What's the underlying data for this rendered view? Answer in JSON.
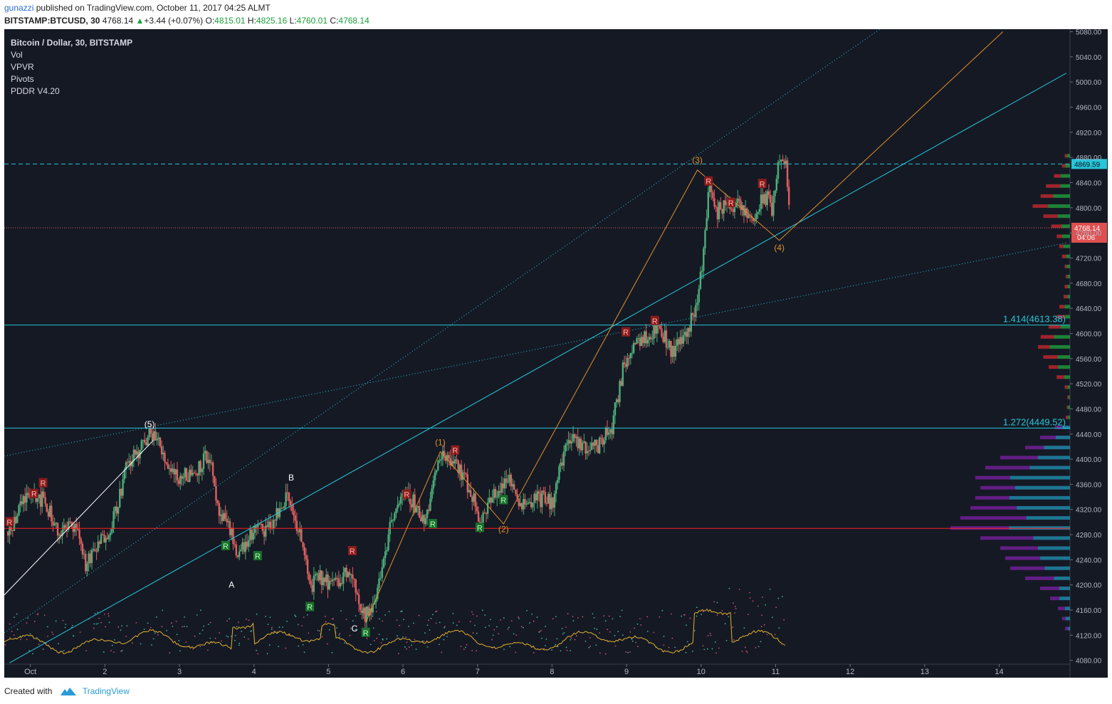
{
  "header": {
    "user": "gunazzi",
    "published": "published on TradingView.com, October 11, 2017 04:25 ALMT",
    "symbol": "BITSTAMP:BTCUSD, 30",
    "last": "4768.14",
    "change_arrow": "▲",
    "change": "+3.44 (+0.07%)",
    "o_label": "O:",
    "o_val": "4815.01",
    "h_label": "H:",
    "h_val": "4825.16",
    "l_label": "L:",
    "l_val": "4760.01",
    "c_label": "C:",
    "c_val": "4768.14"
  },
  "legend": [
    "Bitcoin / Dollar, 30, BITSTAMP",
    "Vol",
    "VPVR",
    "Pivots",
    "PDDR V4.20"
  ],
  "footer": {
    "created": "Created with",
    "brand": "TradingView"
  },
  "chart_data": {
    "type": "candlestick",
    "background": "#151924",
    "colors": {
      "up": "#4caf7a",
      "down": "#e06060",
      "trendline": "#26c6da",
      "wave": "#e0902a",
      "volume_profile_up": "#1f8f3a",
      "volume_profile_down": "#b0262e",
      "volume_profile_va_up": "#1f7fa0",
      "volume_profile_va_down": "#6a1f8f",
      "oscillator": "#e0b030",
      "poc_line": "#ff2020"
    },
    "y_ticks": [
      4080,
      4120,
      4160,
      4200,
      4240,
      4280,
      4320,
      4360,
      4400,
      4440,
      4480,
      4520,
      4560,
      4600,
      4640,
      4680,
      4720,
      4760,
      4800,
      4840,
      4880,
      4920,
      4960,
      5000,
      5040,
      5080
    ],
    "ylim": [
      4074,
      5084
    ],
    "x_ticks": [
      "Oct",
      "2",
      "3",
      "4",
      "5",
      "6",
      "7",
      "8",
      "9",
      "10",
      "11",
      "12",
      "13",
      "14"
    ],
    "x_range_days": [
      0.65,
      14.95
    ],
    "price_path": [
      [
        0.7,
        4285
      ],
      [
        0.9,
        4330
      ],
      [
        1.0,
        4355
      ],
      [
        1.2,
        4330
      ],
      [
        1.4,
        4280
      ],
      [
        1.6,
        4300
      ],
      [
        1.75,
        4230
      ],
      [
        1.9,
        4260
      ],
      [
        2.1,
        4300
      ],
      [
        2.3,
        4390
      ],
      [
        2.5,
        4420
      ],
      [
        2.65,
        4445
      ],
      [
        2.8,
        4400
      ],
      [
        3.0,
        4370
      ],
      [
        3.2,
        4380
      ],
      [
        3.4,
        4410
      ],
      [
        3.5,
        4320
      ],
      [
        3.65,
        4290
      ],
      [
        3.8,
        4250
      ],
      [
        4.0,
        4285
      ],
      [
        4.2,
        4290
      ],
      [
        4.45,
        4340
      ],
      [
        4.6,
        4290
      ],
      [
        4.75,
        4200
      ],
      [
        4.9,
        4210
      ],
      [
        5.1,
        4200
      ],
      [
        5.3,
        4230
      ],
      [
        5.45,
        4150
      ],
      [
        5.6,
        4160
      ],
      [
        5.75,
        4250
      ],
      [
        5.9,
        4330
      ],
      [
        6.1,
        4340
      ],
      [
        6.3,
        4300
      ],
      [
        6.5,
        4410
      ],
      [
        6.7,
        4400
      ],
      [
        6.9,
        4350
      ],
      [
        7.05,
        4300
      ],
      [
        7.2,
        4340
      ],
      [
        7.4,
        4370
      ],
      [
        7.6,
        4330
      ],
      [
        7.8,
        4340
      ],
      [
        8.0,
        4330
      ],
      [
        8.2,
        4430
      ],
      [
        8.4,
        4420
      ],
      [
        8.6,
        4420
      ],
      [
        8.8,
        4450
      ],
      [
        8.95,
        4540
      ],
      [
        9.1,
        4590
      ],
      [
        9.3,
        4600
      ],
      [
        9.45,
        4610
      ],
      [
        9.6,
        4570
      ],
      [
        9.8,
        4600
      ],
      [
        9.95,
        4650
      ],
      [
        10.05,
        4750
      ],
      [
        10.1,
        4840
      ],
      [
        10.2,
        4790
      ],
      [
        10.35,
        4810
      ],
      [
        10.5,
        4800
      ],
      [
        10.7,
        4780
      ],
      [
        10.85,
        4820
      ],
      [
        10.95,
        4800
      ],
      [
        11.05,
        4880
      ],
      [
        11.15,
        4860
      ],
      [
        11.2,
        4768
      ]
    ],
    "vol_profile": [
      [
        4882,
        0.1
      ],
      [
        4866,
        0.15
      ],
      [
        4850,
        0.3
      ],
      [
        4834,
        0.45
      ],
      [
        4818,
        0.55
      ],
      [
        4802,
        0.7
      ],
      [
        4786,
        0.5
      ],
      [
        4770,
        0.35
      ],
      [
        4754,
        0.25
      ],
      [
        4738,
        0.2
      ],
      [
        4722,
        0.15
      ],
      [
        4706,
        0.1
      ],
      [
        4690,
        0.08
      ],
      [
        4674,
        0.1
      ],
      [
        4658,
        0.12
      ],
      [
        4642,
        0.2
      ],
      [
        4626,
        0.25
      ],
      [
        4610,
        0.4
      ],
      [
        4594,
        0.55
      ],
      [
        4578,
        0.6
      ],
      [
        4562,
        0.5
      ],
      [
        4546,
        0.4
      ],
      [
        4530,
        0.25
      ],
      [
        4514,
        0.1
      ],
      [
        4498,
        0.05
      ],
      [
        4482,
        0.06
      ],
      [
        4466,
        0.08
      ],
      [
        4450,
        0.15
      ],
      [
        4434,
        0.3
      ],
      [
        4418,
        0.45
      ],
      [
        4402,
        0.7
      ],
      [
        4386,
        0.85
      ],
      [
        4370,
        0.95
      ],
      [
        4354,
        0.9
      ],
      [
        4338,
        0.95
      ],
      [
        4322,
        1.0
      ],
      [
        4306,
        1.1
      ],
      [
        4290,
        1.2
      ],
      [
        4274,
        0.9
      ],
      [
        4258,
        0.7
      ],
      [
        4242,
        0.65
      ],
      [
        4226,
        0.6
      ],
      [
        4210,
        0.45
      ],
      [
        4194,
        0.3
      ],
      [
        4178,
        0.2
      ],
      [
        4162,
        0.12
      ],
      [
        4146,
        0.08
      ],
      [
        4130,
        0.05
      ]
    ],
    "horizontal_levels": [
      {
        "price": 4869.59,
        "style": "dashed",
        "label": "4869.59"
      },
      {
        "price": 4613.38,
        "label": "1.414(4613.38)"
      },
      {
        "price": 4449.52,
        "label": "1.272(4449.52)"
      },
      {
        "price": 4290,
        "poc": true
      }
    ],
    "current_price": {
      "price": 4768.14,
      "label": "4768.14",
      "countdown": "04:06"
    },
    "trendlines": [
      {
        "from": [
          0.72,
          4076
        ],
        "to": [
          14.9,
          5014
        ],
        "style": "solid"
      },
      {
        "from": [
          0.65,
          4124
        ],
        "to": [
          12.4,
          5084
        ],
        "style": "dotted"
      },
      {
        "from": [
          0.65,
          4405
        ],
        "to": [
          14.9,
          4744
        ],
        "style": "dotted"
      },
      {
        "from": [
          0.65,
          4184
        ],
        "to": [
          2.65,
          4430
        ],
        "style": "white"
      }
    ],
    "wave_path": [
      [
        5.5,
        4140
      ],
      [
        6.5,
        4412
      ],
      [
        7.35,
        4297
      ],
      [
        9.95,
        4860
      ],
      [
        11.05,
        4748
      ],
      [
        14.05,
        5080
      ]
    ],
    "wave_labels": [
      {
        "t": "(5)",
        "d": 2.6,
        "p": 4451,
        "c": "white"
      },
      {
        "t": "(1)",
        "d": 6.5,
        "p": 4422,
        "c": "wave"
      },
      {
        "t": "(2)",
        "d": 7.35,
        "p": 4284,
        "c": "wave"
      },
      {
        "t": "(3)",
        "d": 9.95,
        "p": 4871,
        "c": "wave"
      },
      {
        "t": "(4)",
        "d": 11.05,
        "p": 4732,
        "c": "wave"
      },
      {
        "t": "A",
        "d": 3.7,
        "p": 4196,
        "c": "white"
      },
      {
        "t": "B",
        "d": 4.5,
        "p": 4366,
        "c": "white"
      },
      {
        "t": "C",
        "d": 5.35,
        "p": 4126,
        "c": "white"
      }
    ],
    "pivots": [
      {
        "t": "R",
        "d": 0.72,
        "p": 4300,
        "kind": "high"
      },
      {
        "t": "R",
        "d": 1.05,
        "p": 4345,
        "kind": "high"
      },
      {
        "t": "R",
        "d": 1.17,
        "p": 4362,
        "kind": "high"
      },
      {
        "t": "R",
        "d": 3.62,
        "p": 4262,
        "kind": "low"
      },
      {
        "t": "R",
        "d": 4.05,
        "p": 4246,
        "kind": "low"
      },
      {
        "t": "R",
        "d": 4.75,
        "p": 4165,
        "kind": "low"
      },
      {
        "t": "R",
        "d": 5.32,
        "p": 4254,
        "kind": "high"
      },
      {
        "t": "R",
        "d": 5.5,
        "p": 4124,
        "kind": "low"
      },
      {
        "t": "R",
        "d": 6.05,
        "p": 4344,
        "kind": "high"
      },
      {
        "t": "R",
        "d": 6.4,
        "p": 4297,
        "kind": "low"
      },
      {
        "t": "R",
        "d": 6.7,
        "p": 4414,
        "kind": "high"
      },
      {
        "t": "R",
        "d": 7.03,
        "p": 4291,
        "kind": "low"
      },
      {
        "t": "R",
        "d": 7.35,
        "p": 4335,
        "kind": "low"
      },
      {
        "t": "R",
        "d": 8.99,
        "p": 4602,
        "kind": "high"
      },
      {
        "t": "R",
        "d": 9.38,
        "p": 4620,
        "kind": "high"
      },
      {
        "t": "R",
        "d": 10.1,
        "p": 4842,
        "kind": "high"
      },
      {
        "t": "R",
        "d": 10.4,
        "p": 4808,
        "kind": "high"
      },
      {
        "t": "R",
        "d": 10.82,
        "p": 4838,
        "kind": "high"
      }
    ]
  }
}
